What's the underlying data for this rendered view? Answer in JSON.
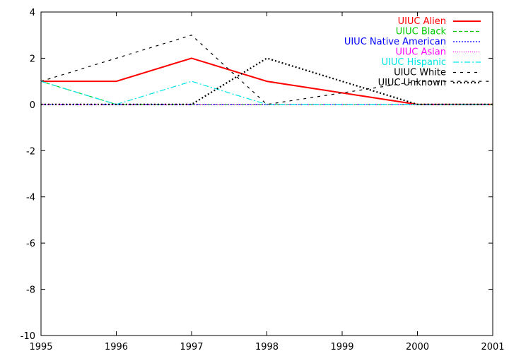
{
  "chart_data": {
    "type": "line",
    "title": "",
    "xlabel": "",
    "ylabel": "",
    "xlim": [
      1995,
      2001
    ],
    "ylim": [
      -10,
      4
    ],
    "x_ticks": [
      "1995",
      "1996",
      "1997",
      "1998",
      "1999",
      "2000",
      "2001"
    ],
    "y_ticks": [
      "4",
      "2",
      "0",
      "-2",
      "-4",
      "-6",
      "-8",
      "-10"
    ],
    "grid": false,
    "legend_position": "top-right",
    "x": [
      1995,
      1996,
      1997,
      1998,
      1999,
      2000,
      2001
    ],
    "series": [
      {
        "name": "UIUC Alien",
        "color": "#ff0000",
        "dash": "solid",
        "values": [
          1,
          1,
          2,
          1,
          0.5,
          0,
          0
        ]
      },
      {
        "name": "UIUC Black",
        "color": "#00cc00",
        "dash": "dashed",
        "values": [
          1,
          0,
          0,
          0,
          0,
          0,
          0
        ]
      },
      {
        "name": "UIUC Native American",
        "color": "#0000ff",
        "dash": "dotted",
        "values": [
          0,
          0,
          0,
          0,
          0,
          0,
          0
        ]
      },
      {
        "name": "UIUC Asian",
        "color": "#ff00ff",
        "dash": "dotted-fine",
        "values": [
          0,
          0,
          0,
          0,
          0,
          0,
          0
        ]
      },
      {
        "name": "UIUC Hispanic",
        "color": "#00e5e5",
        "dash": "dashdot",
        "values": [
          1,
          0,
          1,
          0,
          0,
          0,
          0
        ]
      },
      {
        "name": "UIUC White",
        "color": "#000000",
        "dash": "dashed-wide",
        "values": [
          1,
          2,
          3,
          0,
          0.5,
          1,
          1
        ]
      },
      {
        "name": "UIUC Unknown",
        "color": "#000000",
        "dash": "dotted-bold",
        "values": [
          0,
          0,
          0,
          2,
          1,
          0,
          0
        ]
      }
    ]
  }
}
